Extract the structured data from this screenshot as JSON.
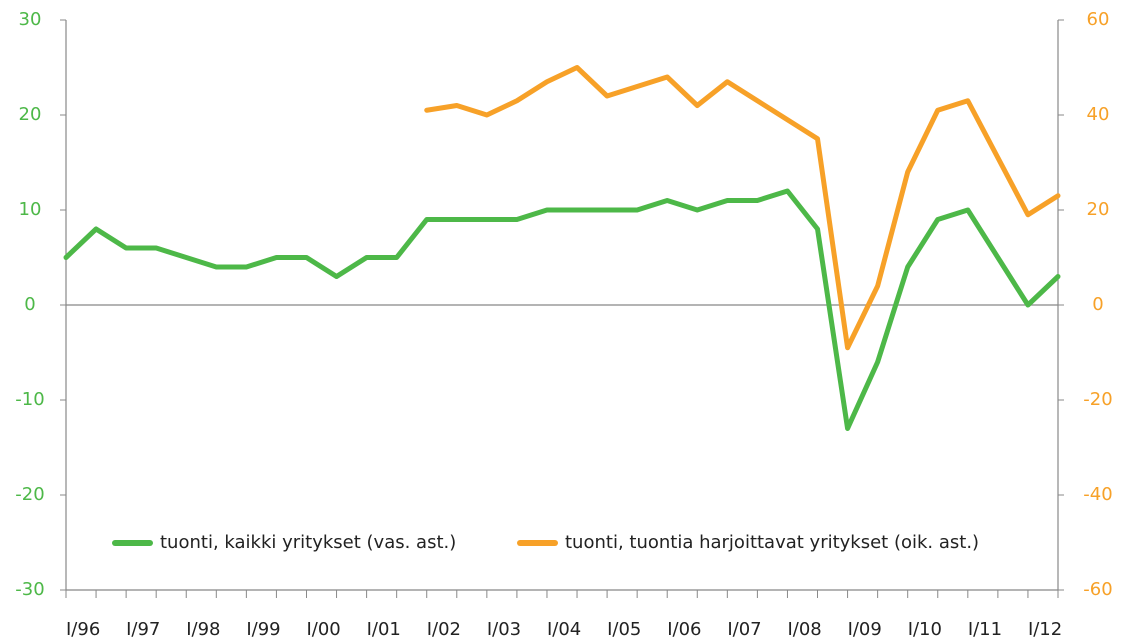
{
  "chart_data": {
    "type": "line",
    "categories": [
      "I/96",
      null,
      "I/97",
      null,
      "I/98",
      null,
      "I/99",
      null,
      "I/00",
      null,
      "I/01",
      null,
      "I/02",
      null,
      "I/03",
      null,
      "I/04",
      null,
      "I/05",
      null,
      "I/06",
      null,
      "I/07",
      null,
      "I/08",
      null,
      "I/09",
      null,
      "I/10",
      null,
      "I/11",
      null,
      "I/12",
      null
    ],
    "series": [
      {
        "name": "tuonti, kaikki yritykset (vas. ast.)",
        "color": "#4db848",
        "values": [
          5,
          8,
          6,
          6,
          5,
          4,
          4,
          5,
          5,
          3,
          5,
          5,
          9,
          9,
          9,
          9,
          10,
          10,
          10,
          10,
          11,
          10,
          11,
          11,
          12,
          8,
          -13,
          -6,
          4,
          9,
          10,
          5,
          0,
          3
        ]
      },
      {
        "name": "tuonti, tuontia harjoittavat yritykset (oik. ast.)",
        "color": "#f7a128",
        "axis": "y2",
        "values": [
          null,
          null,
          null,
          null,
          null,
          null,
          null,
          null,
          null,
          null,
          null,
          null,
          41,
          42,
          40,
          43,
          47,
          50,
          44,
          46,
          48,
          42,
          47,
          43,
          39,
          35,
          -9,
          4,
          28,
          41,
          43,
          31,
          19,
          23
        ]
      }
    ],
    "ylim": [
      -30,
      30
    ],
    "yticks": [
      -30,
      -20,
      -10,
      0,
      10,
      20,
      30
    ],
    "y2lim": [
      -60,
      60
    ],
    "y2ticks": [
      -60,
      -40,
      -20,
      0,
      20,
      40,
      60
    ],
    "legend": "bottom"
  }
}
